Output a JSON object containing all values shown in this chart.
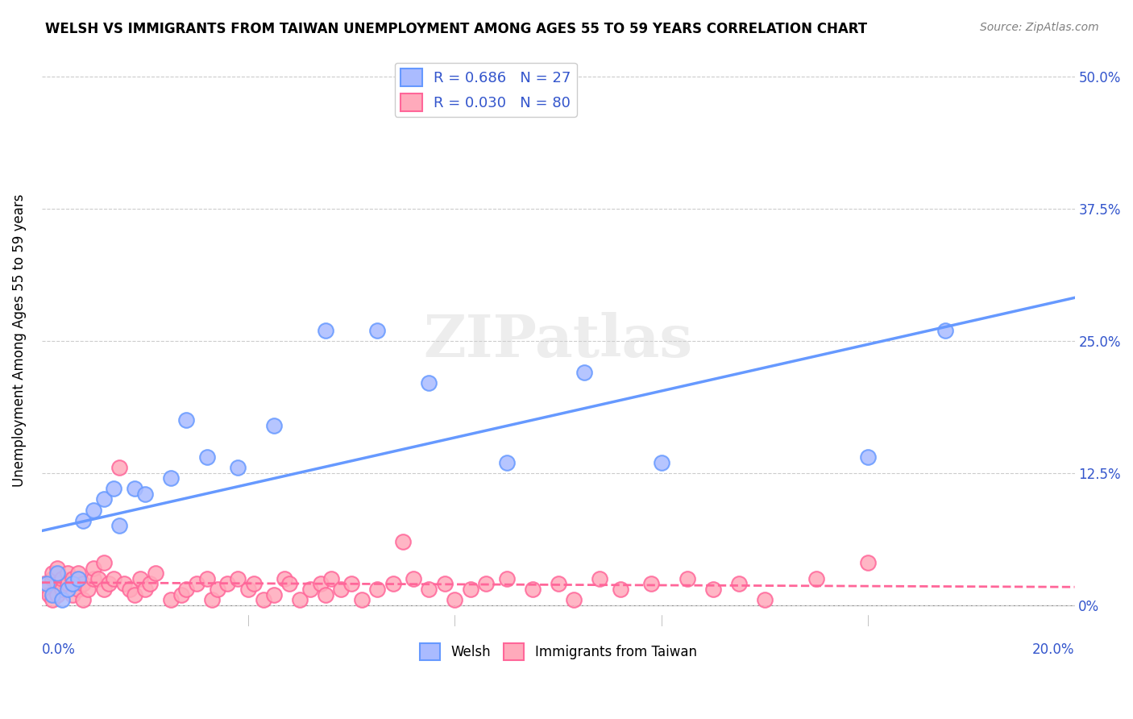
{
  "title": "WELSH VS IMMIGRANTS FROM TAIWAN UNEMPLOYMENT AMONG AGES 55 TO 59 YEARS CORRELATION CHART",
  "source": "Source: ZipAtlas.com",
  "ylabel": "Unemployment Among Ages 55 to 59 years",
  "ytick_labels": [
    "0%",
    "12.5%",
    "25.0%",
    "37.5%",
    "50.0%"
  ],
  "ytick_values": [
    0,
    0.125,
    0.25,
    0.375,
    0.5
  ],
  "xlim": [
    0.0,
    0.2
  ],
  "ylim": [
    -0.02,
    0.52
  ],
  "welsh_color": "#6699ff",
  "welsh_fill": "#aabbff",
  "taiwan_color": "#ff6699",
  "taiwan_fill": "#ffaabb",
  "welsh_R": 0.686,
  "welsh_N": 27,
  "taiwan_R": 0.03,
  "taiwan_N": 80,
  "legend_text_color": "#3355cc",
  "watermark": "ZIPatlas",
  "welsh_scatter_x": [
    0.001,
    0.002,
    0.003,
    0.004,
    0.005,
    0.006,
    0.007,
    0.008,
    0.01,
    0.012,
    0.014,
    0.015,
    0.018,
    0.02,
    0.025,
    0.028,
    0.032,
    0.038,
    0.045,
    0.055,
    0.065,
    0.075,
    0.09,
    0.105,
    0.12,
    0.16,
    0.175
  ],
  "welsh_scatter_y": [
    0.02,
    0.01,
    0.03,
    0.005,
    0.015,
    0.02,
    0.025,
    0.08,
    0.09,
    0.1,
    0.11,
    0.075,
    0.11,
    0.105,
    0.12,
    0.175,
    0.14,
    0.13,
    0.17,
    0.26,
    0.26,
    0.21,
    0.135,
    0.22,
    0.135,
    0.14,
    0.26
  ],
  "taiwan_scatter_x": [
    0.0005,
    0.001,
    0.0015,
    0.002,
    0.002,
    0.002,
    0.003,
    0.003,
    0.003,
    0.004,
    0.004,
    0.005,
    0.005,
    0.006,
    0.006,
    0.007,
    0.007,
    0.008,
    0.008,
    0.009,
    0.01,
    0.01,
    0.011,
    0.012,
    0.012,
    0.013,
    0.014,
    0.015,
    0.016,
    0.017,
    0.018,
    0.019,
    0.02,
    0.021,
    0.022,
    0.025,
    0.027,
    0.028,
    0.03,
    0.032,
    0.033,
    0.034,
    0.036,
    0.038,
    0.04,
    0.041,
    0.043,
    0.045,
    0.047,
    0.048,
    0.05,
    0.052,
    0.054,
    0.055,
    0.056,
    0.058,
    0.06,
    0.062,
    0.065,
    0.068,
    0.07,
    0.072,
    0.075,
    0.078,
    0.08,
    0.083,
    0.086,
    0.09,
    0.095,
    0.1,
    0.103,
    0.108,
    0.112,
    0.118,
    0.125,
    0.13,
    0.135,
    0.14,
    0.15,
    0.16
  ],
  "taiwan_scatter_y": [
    0.02,
    0.015,
    0.01,
    0.025,
    0.005,
    0.03,
    0.02,
    0.01,
    0.035,
    0.015,
    0.025,
    0.03,
    0.02,
    0.025,
    0.01,
    0.015,
    0.03,
    0.005,
    0.02,
    0.015,
    0.025,
    0.035,
    0.025,
    0.015,
    0.04,
    0.02,
    0.025,
    0.13,
    0.02,
    0.015,
    0.01,
    0.025,
    0.015,
    0.02,
    0.03,
    0.005,
    0.01,
    0.015,
    0.02,
    0.025,
    0.005,
    0.015,
    0.02,
    0.025,
    0.015,
    0.02,
    0.005,
    0.01,
    0.025,
    0.02,
    0.005,
    0.015,
    0.02,
    0.01,
    0.025,
    0.015,
    0.02,
    0.005,
    0.015,
    0.02,
    0.06,
    0.025,
    0.015,
    0.02,
    0.005,
    0.015,
    0.02,
    0.025,
    0.015,
    0.02,
    0.005,
    0.025,
    0.015,
    0.02,
    0.025,
    0.015,
    0.02,
    0.005,
    0.025,
    0.04
  ]
}
